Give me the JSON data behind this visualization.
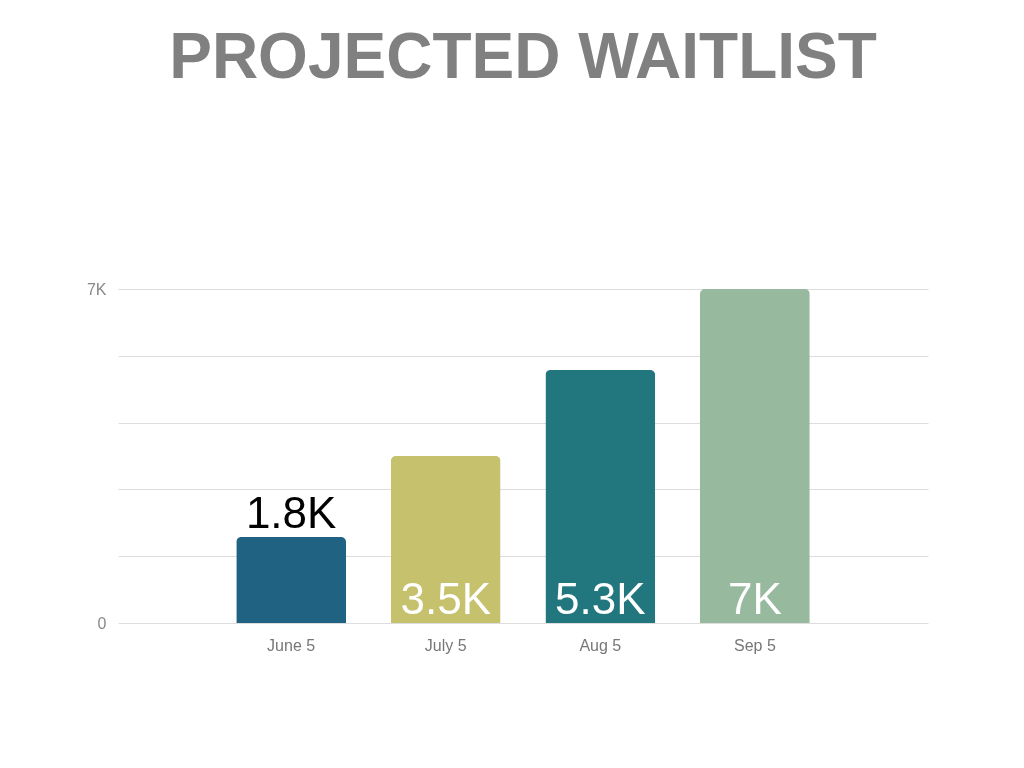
{
  "chart_data": {
    "type": "bar",
    "title": "PROJECTED WAITLIST",
    "categories": [
      "June 5",
      "July 5",
      "Aug 5",
      "Sep 5"
    ],
    "values": [
      1800,
      3500,
      5300,
      7000
    ],
    "colors": [
      "#1f6282",
      "#c5c16d",
      "#22777f",
      "#97b99e"
    ],
    "value_labels": [
      "1.8K",
      "3.5K",
      "5.3K",
      "7K"
    ],
    "ylim": [
      0,
      7000
    ],
    "yticks": [
      0,
      {
        "value": 1400,
        "label": null
      },
      {
        "value": 2800,
        "label": null
      },
      {
        "value": 4200,
        "label": null
      },
      {
        "value": 5600,
        "label": null
      },
      {
        "value": 7000,
        "label": "7K"
      }
    ],
    "grid": "y"
  }
}
